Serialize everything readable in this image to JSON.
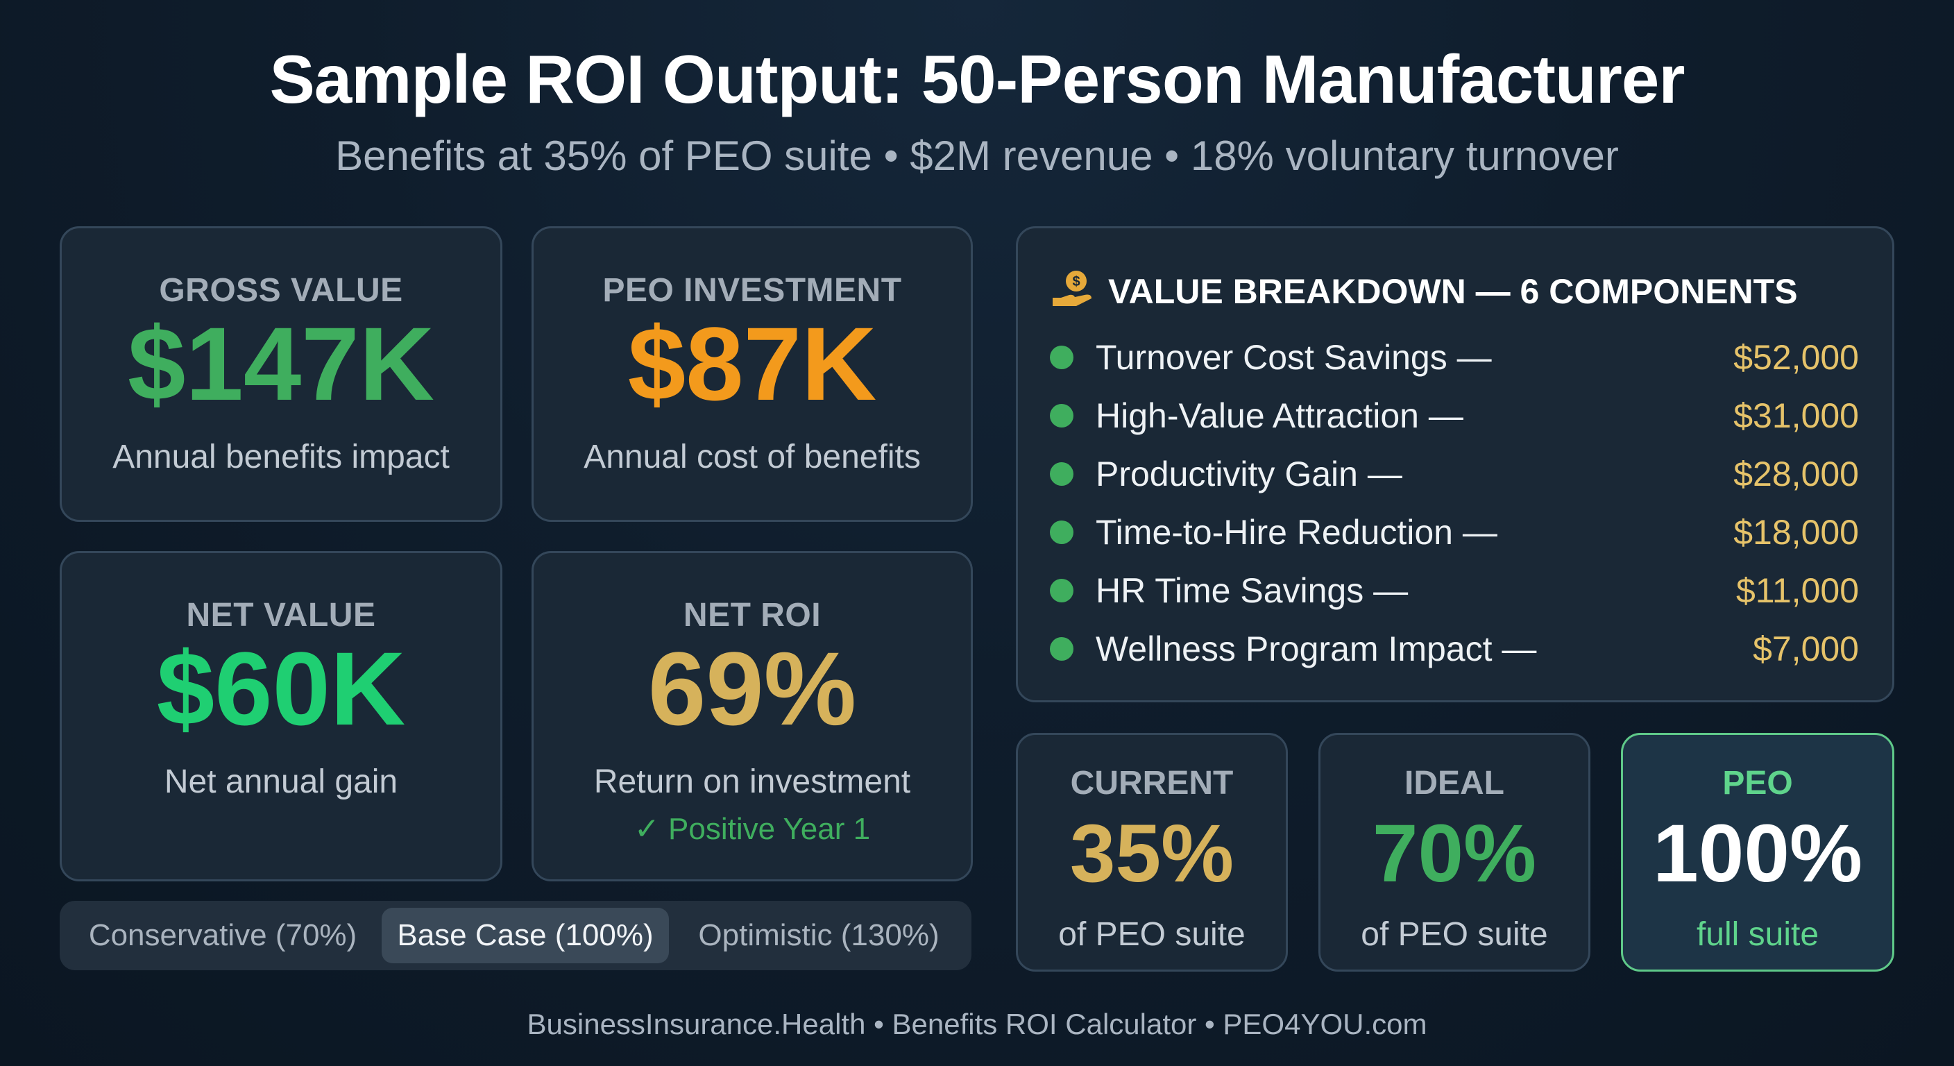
{
  "header": {
    "title": "Sample ROI Output: 50-Person Manufacturer",
    "subtitle": "Benefits at 35% of PEO suite • $2M revenue • 18% voluntary turnover"
  },
  "metrics": {
    "gross": {
      "label": "GROSS VALUE",
      "value": "$147K",
      "caption": "Annual benefits impact",
      "color": "#3fae5e"
    },
    "investment": {
      "label": "PEO INVESTMENT",
      "value": "$87K",
      "caption": "Annual cost of benefits",
      "color": "#f39a1c"
    },
    "net": {
      "label": "NET VALUE",
      "value": "$60K",
      "caption": "Net annual gain",
      "color": "#1fcf72"
    },
    "roi": {
      "label": "NET ROI",
      "value": "69%",
      "caption": "Return on investment",
      "note": "✓ Positive Year 1",
      "color": "#d6b25b"
    }
  },
  "scenarios": {
    "options": [
      "Conservative (70%)",
      "Base Case (100%)",
      "Optimistic (130%)"
    ],
    "selected": "Base Case (100%)"
  },
  "breakdown": {
    "icon": "hand-coin-icon",
    "title": "VALUE BREAKDOWN — 6 COMPONENTS",
    "items": [
      {
        "label": "Turnover Cost Savings —",
        "amount": "$52,000"
      },
      {
        "label": "High-Value Attraction —",
        "amount": "$31,000"
      },
      {
        "label": "Productivity Gain —",
        "amount": "$28,000"
      },
      {
        "label": "Time-to-Hire Reduction —",
        "amount": "$18,000"
      },
      {
        "label": "HR Time Savings —",
        "amount": "$11,000"
      },
      {
        "label": "Wellness Program Impact —",
        "amount": "$7,000"
      }
    ]
  },
  "tiers": {
    "current": {
      "label": "CURRENT",
      "value": "35%",
      "sub": "of PEO suite",
      "color": "#d6b25b"
    },
    "ideal": {
      "label": "IDEAL",
      "value": "70%",
      "sub": "of PEO suite",
      "color": "#3fae5e"
    },
    "peo": {
      "label": "PEO",
      "value": "100%",
      "sub": "full suite",
      "color": "#ffffff"
    }
  },
  "footer": "BusinessInsurance.Health • Benefits ROI Calculator • PEO4YOU.com"
}
